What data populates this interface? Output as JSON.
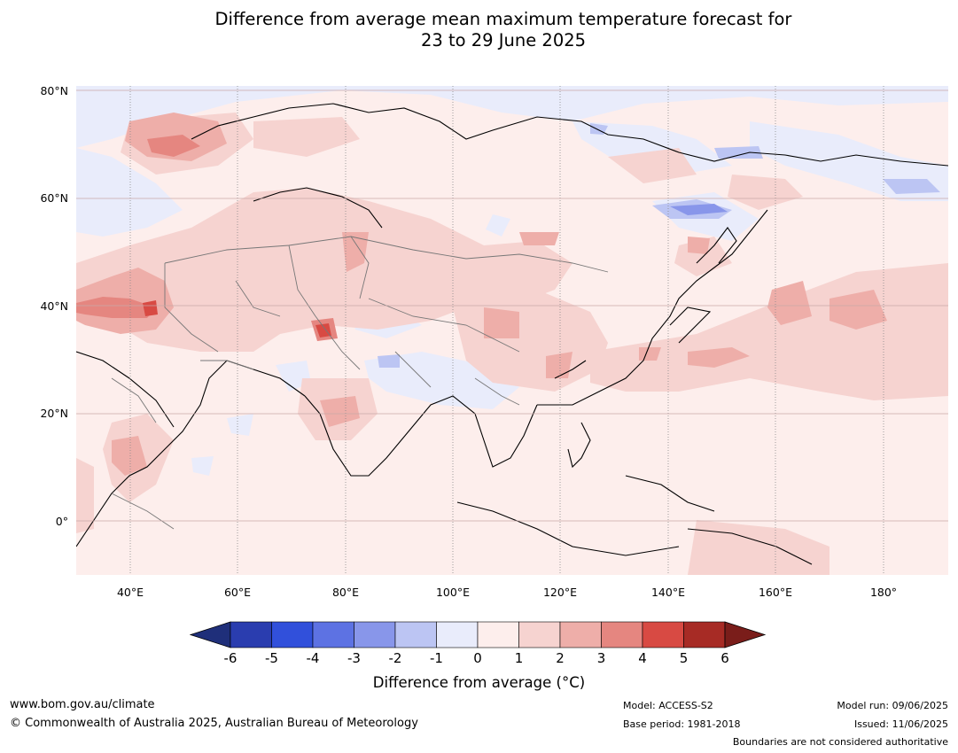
{
  "title": {
    "line1": "Difference from average mean maximum temperature forecast for",
    "line2": "23 to 29 June 2025"
  },
  "axes": {
    "lat_labels": [
      "80°N",
      "60°N",
      "40°N",
      "20°N",
      "0°"
    ],
    "lon_labels": [
      "40°E",
      "60°E",
      "80°E",
      "100°E",
      "120°E",
      "140°E",
      "160°E",
      "180°"
    ]
  },
  "legend": {
    "title": "Difference from average (°C)",
    "ticks": [
      "-6",
      "-5",
      "-4",
      "-3",
      "-2",
      "-1",
      "0",
      "1",
      "2",
      "3",
      "4",
      "5",
      "6"
    ],
    "colors": [
      "#1f2f7a",
      "#2a3daf",
      "#3150db",
      "#5d72e3",
      "#8896ea",
      "#bcc5f3",
      "#e9ecfb",
      "#fdeeec",
      "#f6d3d0",
      "#eeaea9",
      "#e58680",
      "#d84a43",
      "#a72b25",
      "#7a1d1a"
    ]
  },
  "footer": {
    "url": "www.bom.gov.au/climate",
    "copyright": "© Commonwealth of Australia 2025, Australian Bureau of Meteorology",
    "model": "Model: ACCESS-S2",
    "base_period": "Base period: 1981-2018",
    "model_run": "Model run: 09/06/2025",
    "issued": "Issued: 11/06/2025",
    "disclaimer": "Boundaries are not considered authoritative"
  }
}
